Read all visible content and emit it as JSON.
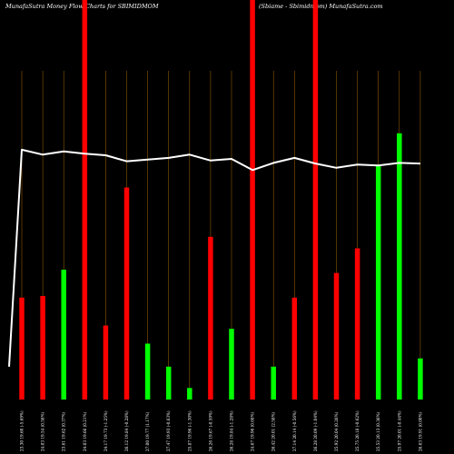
{
  "chart_data": {
    "type": "bar",
    "title": "MunafaSutra  Money Flow  Charts for SBIMIDMOM",
    "subtitle": "(Sbiame -   Sbimidmom) MunafaSutra.com",
    "xlabel": "",
    "ylabel": "",
    "grid": "vertical",
    "categories": [
      "23.30 19.60 (-5.69%)",
      "24.03 19.54 (0.58%)",
      "23.61 19.62 (0.37%)",
      "24.03 19.66 (0.21%)",
      "24.17 19.73 (-1.25%)",
      "26.12 19.84 (-0.28%)",
      "27.00 19.77 (1.17%)",
      "27.47 19.93 (-0.63%)",
      "25.87 19.96 (-1.30%)",
      "26.26 19.67 (-0.59%)",
      "26.28 19.84 (-1.28%)",
      "24.67 19.96 (0.68%)",
      "26.42 20.01 (2.58%)",
      "27.14 20.14 (-0.56%)",
      "26.28 20.09 (-1.04%)",
      "25.92 20.04 (0.26%)",
      "25.75 20.18 (-0.62%)",
      "25.53 20.13 (0.36%)",
      "25.97 20.01 (-0.44%)",
      "26.63 19.91 (0.00%)"
    ],
    "bars": {
      "values": [
        31,
        31.5,
        39.5,
        100,
        22.5,
        64.5,
        17,
        10,
        3.5,
        49.5,
        21.5,
        100,
        10,
        31,
        100,
        38.5,
        46,
        71,
        81,
        12.5
      ],
      "colors": [
        "#ff0000",
        "#ff0000",
        "#00ff00",
        "#ff0000",
        "#ff0000",
        "#ff0000",
        "#00ff00",
        "#00ff00",
        "#00ff00",
        "#ff0000",
        "#00ff00",
        "#ff0000",
        "#00ff00",
        "#ff0000",
        "#ff0000",
        "#ff0000",
        "#ff0000",
        "#00ff00",
        "#00ff00",
        "#00ff00"
      ]
    },
    "line": {
      "values": [
        76,
        74.5,
        75.5,
        74.8,
        74.3,
        72.5,
        73.0,
        73.5,
        74.5,
        72.7,
        73.2,
        69.8,
        72.0,
        73.5,
        71.8,
        70.5,
        71.5,
        71.2,
        72.0,
        71.8
      ],
      "start": 10,
      "color": "#ffffff"
    },
    "ylim": [
      0,
      100
    ],
    "colors": {
      "background": "#000000",
      "grid": "#8b5a00",
      "up": "#00ff00",
      "down": "#ff0000",
      "line": "#ffffff"
    }
  }
}
